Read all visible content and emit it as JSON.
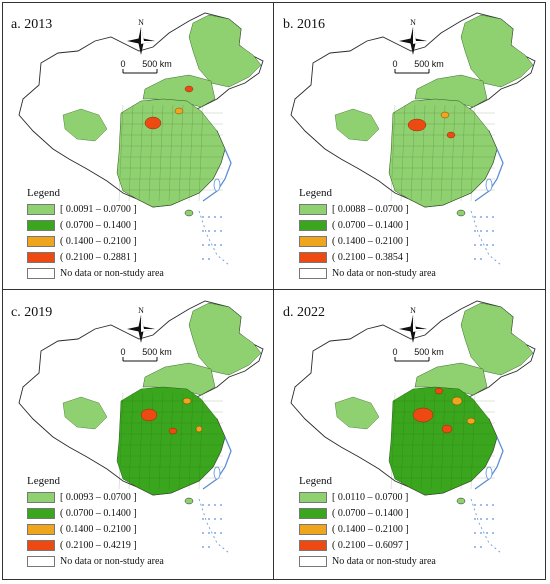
{
  "colors": {
    "class1": "#8fd070",
    "class2": "#3aa61d",
    "class3": "#f0a51e",
    "class4": "#ec4a12",
    "nodata": "#ffffff",
    "outline": "#2a2a2a",
    "coast": "#5b8fd6"
  },
  "compass": {
    "north_label": "N"
  },
  "scalebar": {
    "label": "500 km",
    "zero": "0"
  },
  "legend_title": "Legend",
  "nodata_label": "No data or non-study area",
  "panels": [
    {
      "title": "a. 2013",
      "legend": [
        "[ 0.0091 – 0.0700 ]",
        "( 0.0700 – 0.1400 ]",
        "( 0.1400 – 0.2100 ]",
        "( 0.2100 – 0.2881 ]"
      ]
    },
    {
      "title": "b. 2016",
      "legend": [
        "[ 0.0088 – 0.0700 ]",
        "( 0.0700 – 0.1400 ]",
        "( 0.1400 – 0.2100 ]",
        "( 0.2100 – 0.3854 ]"
      ]
    },
    {
      "title": "c. 2019",
      "legend": [
        "[ 0.0093 – 0.0700 ]",
        "( 0.0700 – 0.1400 ]",
        "( 0.1400 – 0.2100 ]",
        "( 0.2100 – 0.4219 ]"
      ]
    },
    {
      "title": "d. 2022",
      "legend": [
        "[ 0.0110 – 0.0700 ]",
        "( 0.0700 – 0.1400 ]",
        "( 0.1400 – 0.2100 ]",
        "( 0.2100 – 0.6097 ]"
      ]
    }
  ]
}
